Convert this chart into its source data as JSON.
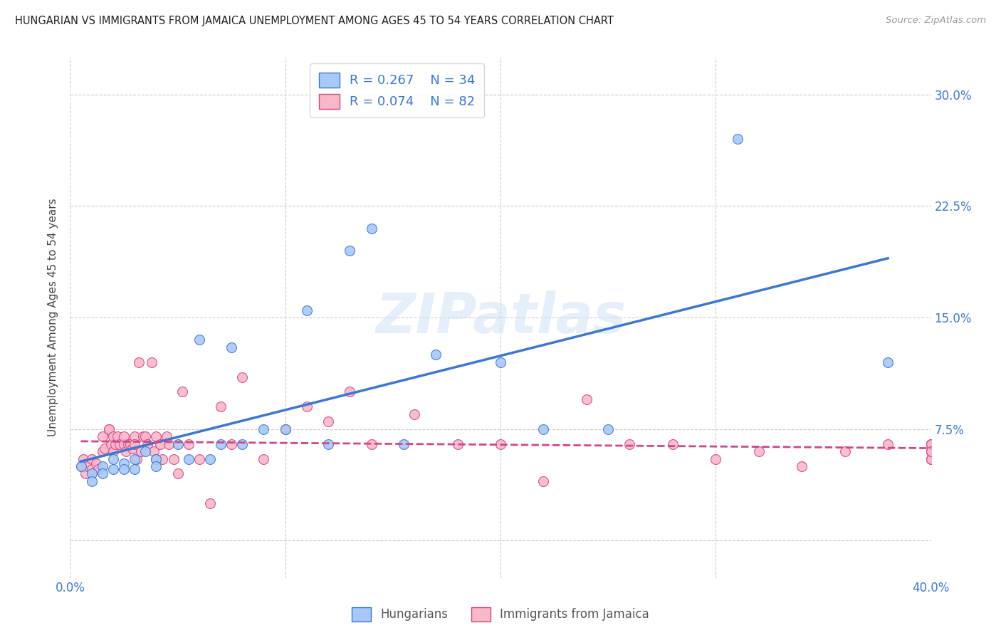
{
  "title": "HUNGARIAN VS IMMIGRANTS FROM JAMAICA UNEMPLOYMENT AMONG AGES 45 TO 54 YEARS CORRELATION CHART",
  "source": "Source: ZipAtlas.com",
  "ylabel": "Unemployment Among Ages 45 to 54 years",
  "xlim": [
    0.0,
    0.4
  ],
  "ylim": [
    -0.025,
    0.325
  ],
  "yticks": [
    0.0,
    0.075,
    0.15,
    0.225,
    0.3
  ],
  "ytick_labels": [
    "",
    "7.5%",
    "15.0%",
    "22.5%",
    "30.0%"
  ],
  "xticks": [
    0.0,
    0.1,
    0.2,
    0.3,
    0.4
  ],
  "xtick_labels": [
    "0.0%",
    "",
    "",
    "",
    "40.0%"
  ],
  "grid_color": "#cccccc",
  "watermark": "ZIPatlas",
  "blue_color": "#a8c8f8",
  "pink_color": "#f8b8c8",
  "blue_line_color": "#3a78d4",
  "pink_line_color": "#d44488",
  "legend_blue_R": "R = 0.267",
  "legend_blue_N": "N = 34",
  "legend_pink_R": "R = 0.074",
  "legend_pink_N": "N = 82",
  "legend_label_blue": "Hungarians",
  "legend_label_pink": "Immigrants from Jamaica",
  "blue_scatter_x": [
    0.005,
    0.01,
    0.01,
    0.015,
    0.015,
    0.02,
    0.02,
    0.025,
    0.025,
    0.03,
    0.03,
    0.035,
    0.04,
    0.04,
    0.05,
    0.055,
    0.06,
    0.065,
    0.07,
    0.075,
    0.08,
    0.09,
    0.1,
    0.11,
    0.12,
    0.13,
    0.14,
    0.155,
    0.17,
    0.2,
    0.22,
    0.25,
    0.31,
    0.38
  ],
  "blue_scatter_y": [
    0.05,
    0.045,
    0.04,
    0.05,
    0.045,
    0.055,
    0.048,
    0.052,
    0.048,
    0.055,
    0.048,
    0.06,
    0.055,
    0.05,
    0.065,
    0.055,
    0.135,
    0.055,
    0.065,
    0.13,
    0.065,
    0.075,
    0.075,
    0.155,
    0.065,
    0.195,
    0.21,
    0.065,
    0.125,
    0.12,
    0.075,
    0.075,
    0.27,
    0.12
  ],
  "pink_scatter_x": [
    0.005,
    0.006,
    0.007,
    0.008,
    0.01,
    0.01,
    0.012,
    0.013,
    0.015,
    0.015,
    0.016,
    0.018,
    0.018,
    0.019,
    0.02,
    0.02,
    0.021,
    0.022,
    0.023,
    0.025,
    0.025,
    0.026,
    0.027,
    0.028,
    0.029,
    0.03,
    0.03,
    0.031,
    0.032,
    0.033,
    0.034,
    0.035,
    0.036,
    0.038,
    0.039,
    0.04,
    0.04,
    0.042,
    0.043,
    0.045,
    0.046,
    0.048,
    0.05,
    0.052,
    0.055,
    0.06,
    0.065,
    0.07,
    0.075,
    0.08,
    0.09,
    0.1,
    0.11,
    0.12,
    0.13,
    0.14,
    0.16,
    0.18,
    0.2,
    0.22,
    0.24,
    0.26,
    0.28,
    0.3,
    0.32,
    0.34,
    0.36,
    0.38,
    0.4,
    0.4,
    0.4,
    0.4,
    0.4,
    0.4,
    0.4,
    0.4,
    0.4,
    0.4,
    0.4,
    0.4,
    0.4,
    0.4
  ],
  "pink_scatter_y": [
    0.05,
    0.055,
    0.045,
    0.05,
    0.055,
    0.048,
    0.052,
    0.048,
    0.07,
    0.06,
    0.062,
    0.075,
    0.075,
    0.065,
    0.07,
    0.06,
    0.065,
    0.07,
    0.065,
    0.065,
    0.07,
    0.06,
    0.065,
    0.065,
    0.062,
    0.07,
    0.065,
    0.055,
    0.12,
    0.06,
    0.07,
    0.07,
    0.065,
    0.12,
    0.06,
    0.055,
    0.07,
    0.065,
    0.055,
    0.07,
    0.065,
    0.055,
    0.045,
    0.1,
    0.065,
    0.055,
    0.025,
    0.09,
    0.065,
    0.11,
    0.055,
    0.075,
    0.09,
    0.08,
    0.1,
    0.065,
    0.085,
    0.065,
    0.065,
    0.04,
    0.095,
    0.065,
    0.065,
    0.055,
    0.06,
    0.05,
    0.06,
    0.065,
    0.065,
    0.06,
    0.065,
    0.055,
    0.06,
    0.065,
    0.055,
    0.06,
    0.065,
    0.055,
    0.06,
    0.065,
    0.055,
    0.06
  ]
}
